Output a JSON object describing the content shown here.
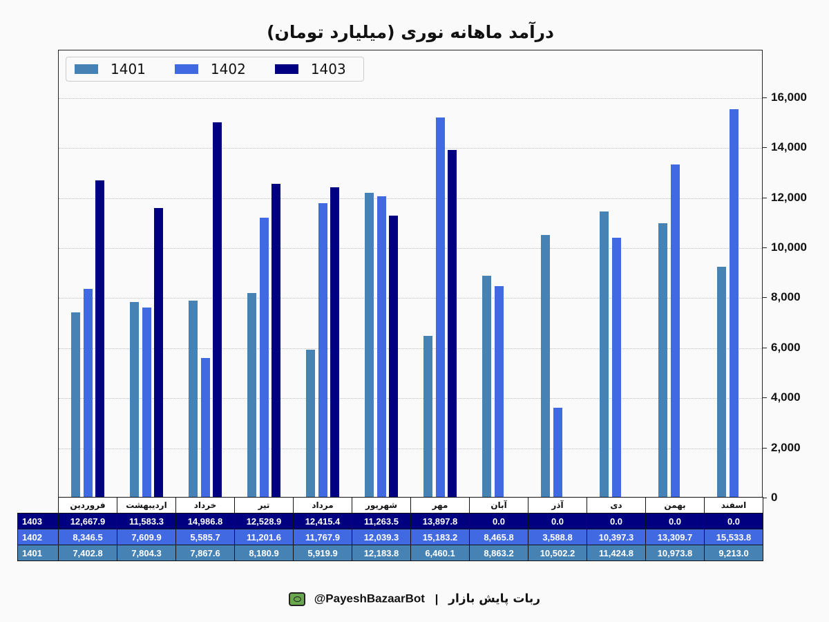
{
  "chart_data": {
    "type": "bar",
    "title": "درآمد ماهانه نوری (میلیارد تومان)",
    "xlabel": "",
    "ylabel": "",
    "ylim": [
      0,
      17900
    ],
    "yticks": [
      0,
      2000,
      4000,
      6000,
      8000,
      10000,
      12000,
      14000,
      16000
    ],
    "ytick_labels": [
      "0",
      "2,000",
      "4,000",
      "6,000",
      "8,000",
      "10,000",
      "12,000",
      "14,000",
      "16,000"
    ],
    "grid": true,
    "legend_position": "upper left",
    "categories": [
      "فروردین",
      "اردیبهشت",
      "خرداد",
      "تیر",
      "مرداد",
      "شهریور",
      "مهر",
      "آبان",
      "آذر",
      "دی",
      "بهمن",
      "اسفند"
    ],
    "series": [
      {
        "name": "1401",
        "color": "#4682B4",
        "values": [
          7402.8,
          7804.3,
          7867.6,
          8180.9,
          5919.9,
          12183.8,
          6460.1,
          8863.2,
          10502.2,
          11424.8,
          10973.8,
          9213.0
        ]
      },
      {
        "name": "1402",
        "color": "#4169E1",
        "values": [
          8346.5,
          7609.9,
          5585.7,
          11201.6,
          11767.9,
          12039.3,
          15183.2,
          8465.8,
          3588.8,
          10397.3,
          13309.7,
          15533.8
        ]
      },
      {
        "name": "1403",
        "color": "#000080",
        "values": [
          12667.9,
          11583.3,
          14986.8,
          12528.9,
          12415.4,
          11263.5,
          13897.8,
          0.0,
          0.0,
          0.0,
          0.0,
          0.0
        ]
      }
    ]
  },
  "title": "درآمد ماهانه نوری (میلیارد تومان)",
  "legend": [
    {
      "label": "1401",
      "color": "#4682B4"
    },
    {
      "label": "1402",
      "color": "#4169E1"
    },
    {
      "label": "1403",
      "color": "#000080"
    }
  ],
  "table": {
    "columns": [
      "فروردین",
      "اردیبهشت",
      "خرداد",
      "تیر",
      "مرداد",
      "شهریور",
      "مهر",
      "آبان",
      "آذر",
      "دی",
      "بهمن",
      "اسفند"
    ],
    "rows": [
      {
        "label": "1403",
        "bg": "#000080",
        "values": [
          "12,667.9",
          "11,583.3",
          "14,986.8",
          "12,528.9",
          "12,415.4",
          "11,263.5",
          "13,897.8",
          "0.0",
          "0.0",
          "0.0",
          "0.0",
          "0.0"
        ]
      },
      {
        "label": "1402",
        "bg": "#4169E1",
        "values": [
          "8,346.5",
          "7,609.9",
          "5,585.7",
          "11,201.6",
          "11,767.9",
          "12,039.3",
          "15,183.2",
          "8,465.8",
          "3,588.8",
          "10,397.3",
          "13,309.7",
          "15,533.8"
        ]
      },
      {
        "label": "1401",
        "bg": "#4682B4",
        "values": [
          "7,402.8",
          "7,804.3",
          "7,867.6",
          "8,180.9",
          "5,919.9",
          "12,183.8",
          "6,460.1",
          "8,863.2",
          "10,502.2",
          "11,424.8",
          "10,973.8",
          "9,213.0"
        ]
      }
    ]
  },
  "footer": {
    "handle": "@PayeshBazaarBot",
    "separator": "|",
    "text": "ربات پایش بازار",
    "icon": "robot-monitor-icon"
  }
}
